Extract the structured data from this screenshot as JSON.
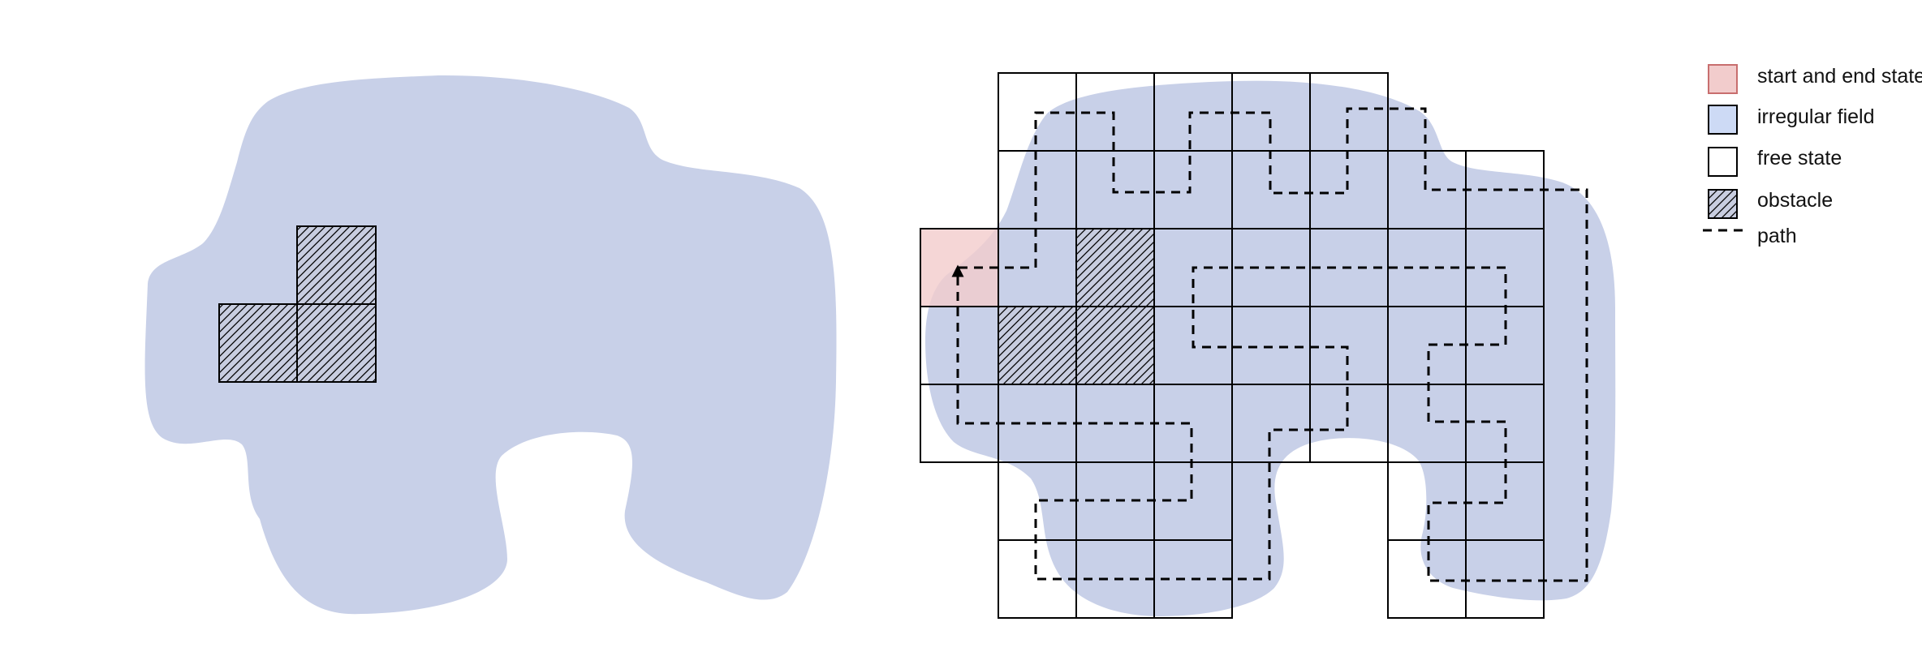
{
  "colors": {
    "irregular_field": "#c8d0e8",
    "start_fill": "#f2cccc",
    "start_stroke": "#c86e6e",
    "legend_field_fill": "#cddaf5",
    "obstacle_fill": "#c8cde0",
    "line": "#000000",
    "background": "#ffffff"
  },
  "legend": {
    "start_end_state": "start and end state",
    "irregular_field": "irregular field",
    "free_state": "free state",
    "obstacle": "obstacle",
    "path": "path"
  }
}
